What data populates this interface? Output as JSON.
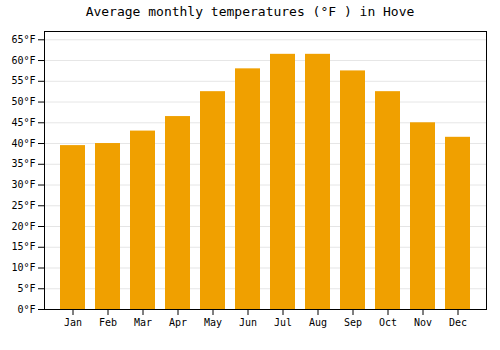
{
  "chart_data": {
    "type": "bar",
    "title": "Average monthly temperatures (°F ) in Hove",
    "categories": [
      "Jan",
      "Feb",
      "Mar",
      "Apr",
      "May",
      "Jun",
      "Jul",
      "Aug",
      "Sep",
      "Oct",
      "Nov",
      "Dec"
    ],
    "values": [
      39.5,
      40.0,
      43.0,
      46.5,
      52.5,
      58.0,
      61.5,
      61.5,
      57.5,
      52.5,
      45.0,
      41.5
    ],
    "color": "#F0A000",
    "ylim": [
      0,
      67
    ],
    "yticks": [
      {
        "value": 0,
        "label": "0°F"
      },
      {
        "value": 5,
        "label": "5°F"
      },
      {
        "value": 10,
        "label": "10°F"
      },
      {
        "value": 15,
        "label": "15°F"
      },
      {
        "value": 20,
        "label": "20°F"
      },
      {
        "value": 25,
        "label": "25°F"
      },
      {
        "value": 30,
        "label": "30°F"
      },
      {
        "value": 35,
        "label": "35°F"
      },
      {
        "value": 40,
        "label": "40°F"
      },
      {
        "value": 45,
        "label": "45°F"
      },
      {
        "value": 50,
        "label": "50°F"
      },
      {
        "value": 55,
        "label": "55°F"
      },
      {
        "value": 60,
        "label": "60°F"
      },
      {
        "value": 65,
        "label": "65°F"
      }
    ],
    "grid": true
  }
}
